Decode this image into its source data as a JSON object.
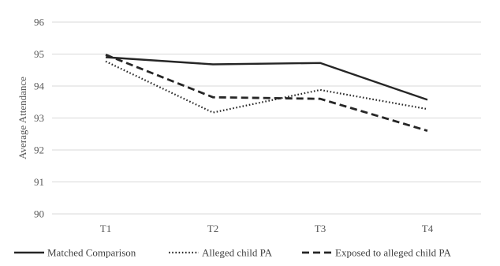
{
  "chart_data": {
    "type": "line",
    "categories": [
      "T1",
      "T2",
      "T3",
      "T4"
    ],
    "ylabel": "Average Attendance",
    "xlabel": "",
    "ylim": [
      90,
      96
    ],
    "yticks": [
      90,
      91,
      92,
      93,
      94,
      95,
      96
    ],
    "grid": true,
    "legend_position": "bottom",
    "series": [
      {
        "name": "Matched Comparison",
        "values": [
          94.9,
          94.68,
          94.72,
          93.57
        ],
        "style": "solid",
        "color": "#262626"
      },
      {
        "name": "Alleged child PA",
        "values": [
          94.77,
          93.17,
          93.88,
          93.28
        ],
        "style": "dotted",
        "color": "#262626"
      },
      {
        "name": "Exposed to alleged child PA",
        "values": [
          94.98,
          93.65,
          93.6,
          92.6
        ],
        "style": "dashed",
        "color": "#262626"
      }
    ]
  }
}
